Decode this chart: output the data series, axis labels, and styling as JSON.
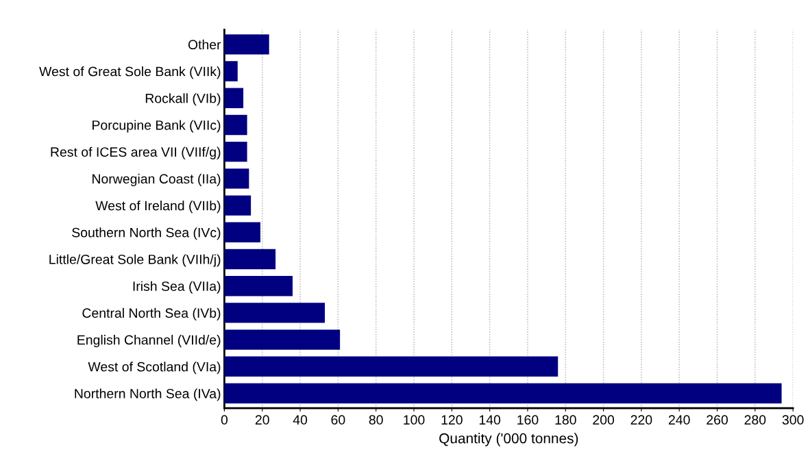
{
  "chart_data": {
    "type": "bar",
    "orientation": "horizontal",
    "xlabel": "Quantity ('000 tonnes)",
    "categories": [
      "Other",
      "West of Great Sole Bank (VIIk)",
      "Rockall (VIb)",
      "Porcupine Bank (VIIc)",
      "Rest of ICES area VII (VIIf/g)",
      "Norwegian Coast (IIa)",
      "West of Ireland (VIIb)",
      "Southern North Sea (IVc)",
      "Little/Great Sole Bank (VIIh/j)",
      "Irish Sea (VIIa)",
      "Central North Sea (IVb)",
      "English Channel (VIId/e)",
      "West of Scotland (VIa)",
      "Northern North Sea (IVa)"
    ],
    "values": [
      23.6,
      7,
      10,
      12,
      12,
      13,
      14,
      19,
      27,
      36,
      53,
      61,
      176,
      294
    ],
    "color": "#000080",
    "xlim": [
      0,
      300
    ],
    "xticks": [
      0,
      20,
      40,
      60,
      80,
      100,
      120,
      140,
      160,
      180,
      200,
      220,
      240,
      260,
      280,
      300
    ],
    "grid": "x"
  }
}
